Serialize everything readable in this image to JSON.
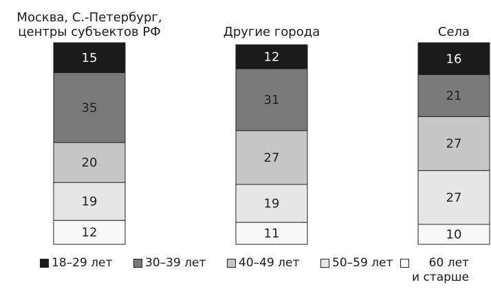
{
  "chart_data": {
    "type": "stacked_bar",
    "categories": [
      "Москва, С.-Петербург,\nцентры субъектов РФ",
      "Другие города",
      "Села"
    ],
    "series": [
      {
        "name": "18–29 лет",
        "color": "#1b1b1b",
        "values": [
          15,
          12,
          16
        ]
      },
      {
        "name": "30–39 лет",
        "color": "#7a7a7a",
        "values": [
          35,
          31,
          21
        ]
      },
      {
        "name": "40–49 лет",
        "color": "#c6c6c6",
        "values": [
          20,
          27,
          27
        ]
      },
      {
        "name": "50–59 лет",
        "color": "#e6e6e6",
        "values": [
          19,
          19,
          27
        ]
      },
      {
        "name": "60 лет\nи старше",
        "color": "#f9f9f9",
        "values": [
          12,
          11,
          10
        ]
      }
    ]
  }
}
